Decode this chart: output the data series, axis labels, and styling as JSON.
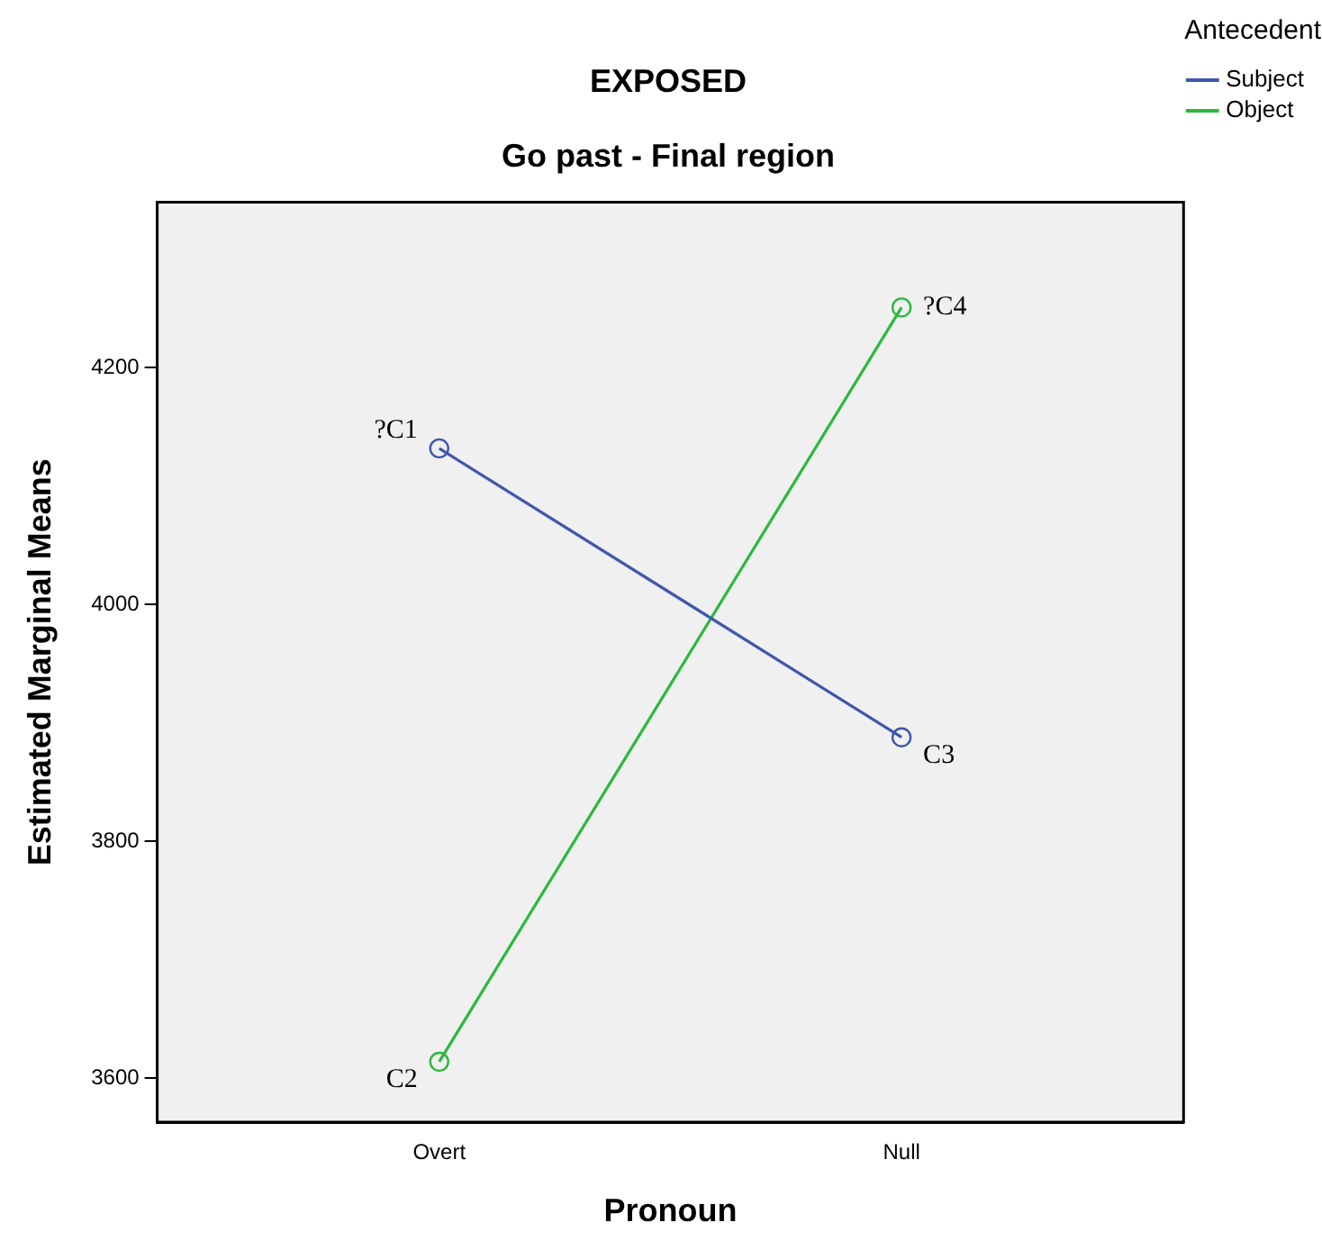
{
  "chart_data": {
    "type": "line",
    "title": "EXPOSED",
    "subtitle": "Go past - Final region",
    "xlabel": "Pronoun",
    "ylabel": "Estimated Marginal Means",
    "legend_title": "Antecedent",
    "categories": [
      "Overt",
      "Null"
    ],
    "series": [
      {
        "name": "Subject",
        "color": "#3e58ac",
        "values": [
          4132,
          3888
        ]
      },
      {
        "name": "Object",
        "color": "#2db83d",
        "values": [
          3614,
          4251
        ]
      }
    ],
    "ylim": [
      3563,
      4340
    ],
    "yticks": [
      3600,
      3800,
      4000,
      4200
    ],
    "grid": false,
    "legend": "top right",
    "marker": "circle",
    "line_style": "solid",
    "annotations": [
      {
        "text": "?C1",
        "x": "Overt",
        "y": 4132
      },
      {
        "text": "C2",
        "x": "Overt",
        "y": 3614
      },
      {
        "text": "C3",
        "x": "Null",
        "y": 3888
      },
      {
        "text": "?C4",
        "x": "Null",
        "y": 4251
      }
    ]
  }
}
